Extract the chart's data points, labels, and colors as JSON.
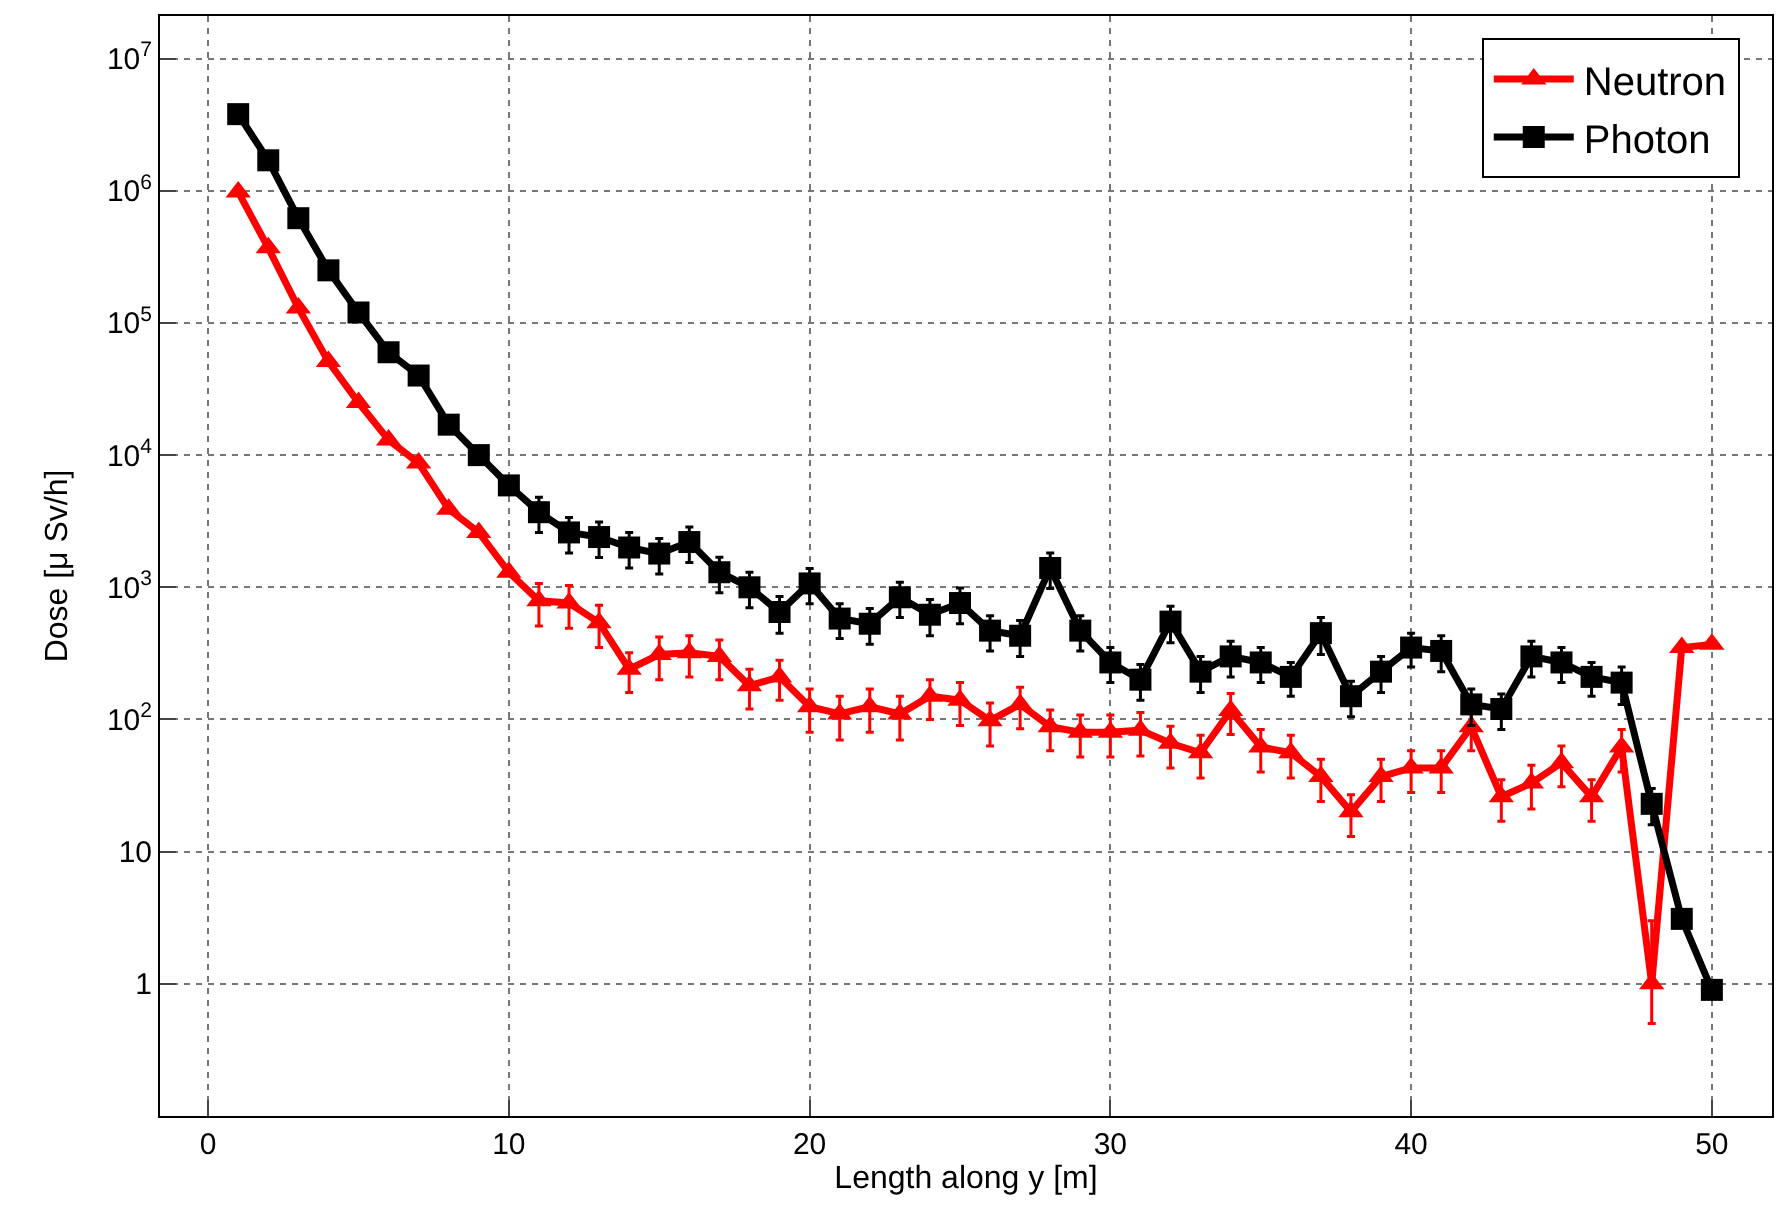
{
  "chart_data": {
    "type": "line",
    "xlabel": "Length along y [m]",
    "ylabel": "Dose [μ Sv/h]",
    "x": [
      1,
      2,
      3,
      4,
      5,
      6,
      7,
      8,
      9,
      10,
      11,
      12,
      13,
      14,
      15,
      16,
      17,
      18,
      19,
      20,
      21,
      22,
      23,
      24,
      25,
      26,
      27,
      28,
      29,
      30,
      31,
      32,
      33,
      34,
      35,
      36,
      37,
      38,
      39,
      40,
      41,
      42,
      43,
      44,
      45,
      46,
      47,
      48,
      49,
      50
    ],
    "series": [
      {
        "name": "Neutron",
        "color": "#ff0000",
        "marker": "triangle",
        "values": [
          980000,
          370000,
          130000,
          51000,
          25000,
          13000,
          8700,
          3900,
          2600,
          1300,
          790,
          760,
          540,
          240,
          310,
          320,
          300,
          180,
          210,
          125,
          110,
          125,
          110,
          150,
          140,
          98,
          130,
          88,
          80,
          80,
          83,
          66,
          56,
          117,
          62,
          56,
          37,
          20,
          37,
          43,
          43,
          88,
          26,
          33,
          47,
          26,
          62,
          1,
          350,
          370
        ],
        "errors": [
          null,
          null,
          null,
          null,
          null,
          null,
          null,
          null,
          null,
          null,
          280,
          270,
          190,
          80,
          110,
          110,
          100,
          60,
          70,
          45,
          40,
          45,
          40,
          50,
          50,
          35,
          45,
          30,
          28,
          28,
          30,
          23,
          20,
          40,
          22,
          20,
          13,
          7,
          13,
          15,
          15,
          30,
          9,
          12,
          16,
          9,
          22,
          [
            0.5,
            3
          ],
          null,
          null
        ]
      },
      {
        "name": "Photon",
        "color": "#000000",
        "marker": "square",
        "values": [
          3800000,
          1700000,
          620000,
          250000,
          120000,
          60000,
          40000,
          17000,
          10000,
          5900,
          3700,
          2600,
          2400,
          2000,
          1800,
          2200,
          1300,
          1000,
          650,
          1070,
          580,
          530,
          840,
          620,
          760,
          470,
          430,
          1400,
          470,
          270,
          200,
          550,
          230,
          300,
          270,
          210,
          450,
          150,
          230,
          350,
          330,
          130,
          120,
          300,
          270,
          210,
          190,
          23,
          3.1,
          0.9
        ],
        "errors": [
          null,
          null,
          null,
          null,
          null,
          null,
          null,
          null,
          null,
          null,
          1100,
          780,
          720,
          600,
          540,
          660,
          390,
          300,
          200,
          320,
          170,
          160,
          250,
          190,
          230,
          140,
          130,
          420,
          140,
          80,
          60,
          170,
          70,
          90,
          80,
          60,
          140,
          45,
          70,
          100,
          100,
          40,
          36,
          90,
          80,
          60,
          60,
          7,
          null,
          null
        ]
      }
    ],
    "log": "y",
    "xlim": [
      -1.6,
      52
    ],
    "xticks": [
      0,
      10,
      20,
      30,
      40,
      50
    ],
    "ylim": [
      0.1,
      21000000
    ],
    "yticks": [
      {
        "value": 1,
        "label": "1"
      },
      {
        "value": 10,
        "label": "10"
      },
      {
        "value": 100,
        "label": "10$^{2}$"
      },
      {
        "value": 1000,
        "label": "10$^{3}$"
      },
      {
        "value": 10000,
        "label": "10$^{4}$"
      },
      {
        "value": 100000,
        "label": "10$^{5}$"
      },
      {
        "value": 1000000,
        "label": "10$^{6}$"
      },
      {
        "value": 10000000,
        "label": "10$^{7}$"
      }
    ],
    "grid": true,
    "legend": "top right",
    "line_style": "solid"
  }
}
